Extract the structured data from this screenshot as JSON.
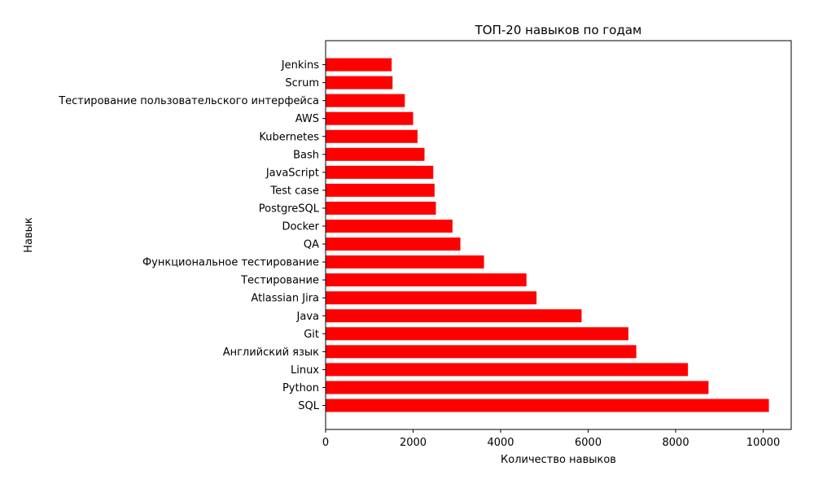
{
  "chart_data": {
    "type": "bar",
    "orientation": "horizontal",
    "title": "ТОП-20 навыков по годам",
    "xlabel": "Количество навыков",
    "ylabel": "Навык",
    "color": "#ff0000",
    "xlim": [
      0,
      10640
    ],
    "x_ticks": [
      0,
      2000,
      4000,
      6000,
      8000,
      10000
    ],
    "grid": false,
    "categories": [
      "SQL",
      "Python",
      "Linux",
      "Английский язык",
      "Git",
      "Java",
      "Atlassian Jira",
      "Тестирование",
      "Функциональное тестирование",
      "QA",
      "Docker",
      "PostgreSQL",
      "Test case",
      "JavaScript",
      "Bash",
      "Kubernetes",
      "AWS",
      "Тестирование пользовательского интерфейса",
      "Scrum",
      "Jenkins"
    ],
    "values": [
      10130,
      8750,
      8280,
      7100,
      6920,
      5850,
      4820,
      4590,
      3620,
      3080,
      2900,
      2520,
      2490,
      2460,
      2260,
      2100,
      2000,
      1810,
      1530,
      1510
    ]
  }
}
